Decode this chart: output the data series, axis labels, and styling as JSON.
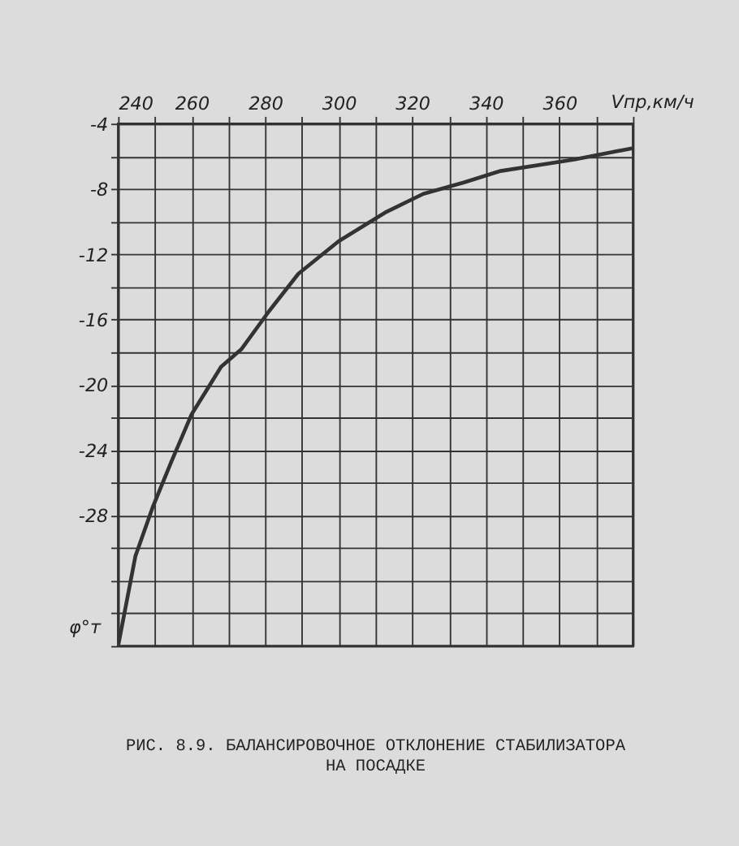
{
  "chart_data": {
    "type": "line",
    "xlabel": "Vпр,км/ч",
    "ylabel": "φ°т",
    "x": [
      240,
      244.7,
      249.4,
      254.5,
      260,
      268,
      273.6,
      281,
      289,
      300,
      313,
      323,
      334,
      344,
      364,
      380
    ],
    "series": [
      {
        "color": "#333333",
        "values": [
          -36,
          -30.5,
          -27.5,
          -24.7,
          -21.8,
          -18.9,
          -17.8,
          -15.5,
          -13.2,
          -11.2,
          -9.4,
          -8.3,
          -7.6,
          -6.9,
          -6.2,
          -5.5
        ]
      }
    ],
    "xlim": [
      240,
      380
    ],
    "ylim": [
      -36,
      -4
    ],
    "xticks": [
      240,
      {
        "value": 250,
        "label": null
      },
      260,
      {
        "value": 270,
        "label": null
      },
      280,
      {
        "value": 290,
        "label": null
      },
      300,
      {
        "value": 310,
        "label": null
      },
      320,
      {
        "value": 330,
        "label": null
      },
      340,
      {
        "value": 350,
        "label": null
      },
      360,
      {
        "value": 370,
        "label": null
      },
      {
        "value": 380,
        "label": null
      }
    ],
    "yticks": [
      -4,
      {
        "value": -6,
        "label": null
      },
      -8,
      {
        "value": -10,
        "label": null
      },
      -12,
      {
        "value": -14,
        "label": null
      },
      -16,
      {
        "value": -18,
        "label": null
      },
      -20,
      {
        "value": -22,
        "label": null
      },
      -24,
      {
        "value": -26,
        "label": null
      },
      -28,
      {
        "value": -30,
        "label": null
      },
      {
        "value": -32,
        "label": null
      },
      {
        "value": -34,
        "label": null
      },
      {
        "value": -36,
        "label": null
      }
    ],
    "grid": true,
    "marker": "none",
    "line_style": "solid",
    "annotations": [
      "РИС. 8.9. БАЛАНСИРОВОЧНОЕ ОТКЛОНЕНИЕ СТАБИЛИЗАТОРА\nНА ПОСАДКЕ"
    ]
  }
}
